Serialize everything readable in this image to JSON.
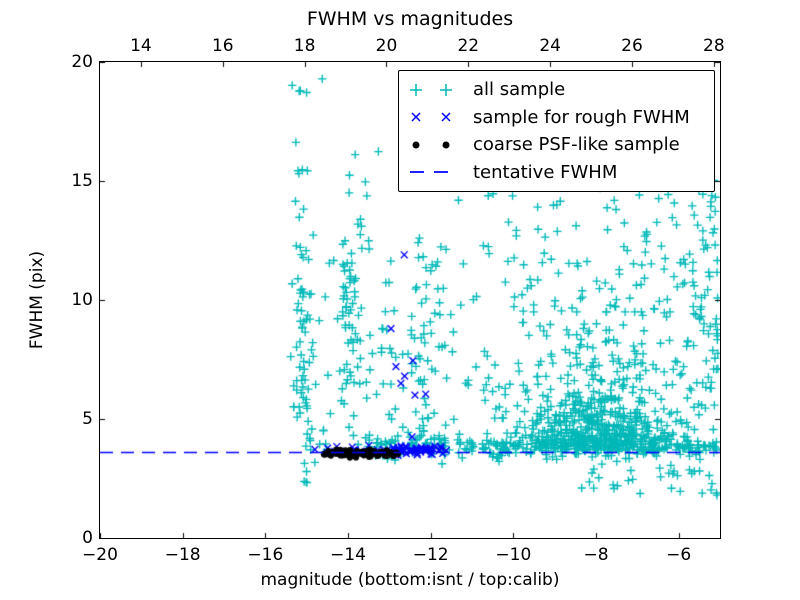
{
  "chart_data": {
    "type": "scatter",
    "title": "FWHM vs magnitudes",
    "seed": 7,
    "axes": {
      "x_bottom": {
        "label": "magnitude (bottom:isnt / top:calib)",
        "range": [
          -20,
          -5
        ],
        "tick_values": [
          -20,
          -18,
          -16,
          -14,
          -12,
          -10,
          -8,
          -6
        ],
        "tick_labels": [
          "−20",
          "−18",
          "−16",
          "−14",
          "−12",
          "−10",
          "−8",
          "−6"
        ]
      },
      "x_top": {
        "range": [
          13.0,
          28.15
        ],
        "tick_values": [
          14,
          16,
          18,
          20,
          22,
          24,
          26,
          28
        ],
        "tick_labels": [
          "14",
          "16",
          "18",
          "20",
          "22",
          "24",
          "26",
          "28"
        ]
      },
      "y": {
        "label": "FWHM (pix)",
        "range": [
          0,
          20
        ],
        "tick_values": [
          0,
          5,
          10,
          15,
          20
        ],
        "tick_labels": [
          "0",
          "5",
          "10",
          "15",
          "20"
        ]
      }
    },
    "legend": {
      "position": "upper right"
    },
    "series": [
      {
        "name": "all sample",
        "marker": "plus",
        "color": "#00b8b8",
        "clusters": [
          {
            "n": 22,
            "x": {
              "d": "norm",
              "m": -15.12,
              "s": 0.18
            },
            "y": {
              "d": "uniform",
              "a": 10.5,
              "b": 19.5
            }
          },
          {
            "n": 60,
            "x": {
              "d": "norm",
              "m": -15.08,
              "s": 0.15
            },
            "y": {
              "d": "uniform",
              "a": 2.3,
              "b": 10.5
            }
          },
          {
            "n": 10,
            "x": {
              "d": "uniform",
              "a": -14.95,
              "b": -14.5
            },
            "y": {
              "d": "uniform",
              "a": 3.6,
              "b": 4.9
            }
          },
          {
            "n": 15,
            "x": {
              "d": "norm",
              "m": -13.75,
              "s": 0.2
            },
            "y": {
              "d": "uniform",
              "a": 12,
              "b": 16.6
            }
          },
          {
            "n": 75,
            "x": {
              "d": "norm",
              "m": -13.9,
              "s": 0.28
            },
            "y": {
              "d": "uniform",
              "a": 3.8,
              "b": 12
            }
          },
          {
            "n": 70,
            "x": {
              "d": "uniform",
              "a": -13.4,
              "b": -11.3
            },
            "y": {
              "d": "norm",
              "m": 3.85,
              "s": 0.25
            }
          },
          {
            "n": 240,
            "x": {
              "d": "uniform",
              "a": -11.3,
              "b": -5.05
            },
            "y": {
              "d": "norm",
              "m": 3.8,
              "s": 0.22
            }
          },
          {
            "n": 520,
            "x": {
              "d": "norm",
              "m": -7.85,
              "s": 0.95,
              "min": -10.5,
              "max": -5.05
            },
            "y": {
              "d": "exp",
              "base": 3.7,
              "scale": 1.35,
              "max": 9.5
            }
          },
          {
            "n": 300,
            "x": {
              "d": "pow",
              "from": -5.05,
              "to": -12.5,
              "p": 1.35
            },
            "y": {
              "d": "uniform",
              "a": 4,
              "b": 13.2
            }
          },
          {
            "n": 45,
            "x": {
              "d": "uniform",
              "a": -13.2,
              "b": -11.8
            },
            "y": {
              "d": "uniform",
              "a": 4,
              "b": 12
            }
          },
          {
            "n": 60,
            "x": {
              "d": "pow",
              "from": -5.1,
              "to": -12.1,
              "p": 1.2
            },
            "y": {
              "d": "uniform",
              "a": 13.2,
              "b": 16.8
            }
          },
          {
            "n": 16,
            "x": {
              "d": "uniform",
              "a": -11,
              "b": -5.3
            },
            "y": {
              "d": "uniform",
              "a": 16.8,
              "b": 19.6
            }
          },
          {
            "n": 34,
            "x": {
              "d": "pow",
              "from": -5.05,
              "to": -8.45,
              "p": 1.5
            },
            "y": {
              "d": "uniform",
              "a": 1.7,
              "b": 3.35
            }
          }
        ]
      },
      {
        "name": "sample for rough FWHM",
        "marker": "x",
        "color": "#0000ff",
        "points": [
          [
            -12.64,
            11.9
          ],
          [
            -12.96,
            8.8
          ],
          [
            -12.84,
            7.2
          ],
          [
            -12.63,
            6.8
          ],
          [
            -12.43,
            7.45
          ],
          [
            -12.72,
            6.5
          ],
          [
            -12.38,
            6.0
          ],
          [
            -12.12,
            6.05
          ],
          [
            -12.45,
            4.25
          ],
          [
            -14.8,
            3.72
          ]
        ],
        "clusters": [
          {
            "n": 55,
            "x": {
              "d": "uniform",
              "a": -12.95,
              "b": -11.6
            },
            "y": {
              "d": "norm",
              "m": 3.67,
              "s": 0.1
            }
          },
          {
            "n": 20,
            "x": {
              "d": "uniform",
              "a": -14.55,
              "b": -12.95
            },
            "y": {
              "d": "norm",
              "m": 3.7,
              "s": 0.09
            }
          }
        ]
      },
      {
        "name": "coarse PSF-like sample",
        "marker": "dot",
        "color": "#000000",
        "clusters": [
          {
            "n": 85,
            "x": {
              "d": "uniform",
              "a": -14.6,
              "b": -12.75
            },
            "y": {
              "d": "norm",
              "m": 3.55,
              "s": 0.08
            }
          }
        ]
      },
      {
        "name": "tentative FWHM",
        "marker": "dashed-line",
        "color": "#0000ff",
        "line_y": 3.6,
        "dash": [
          13,
          8
        ]
      }
    ]
  }
}
